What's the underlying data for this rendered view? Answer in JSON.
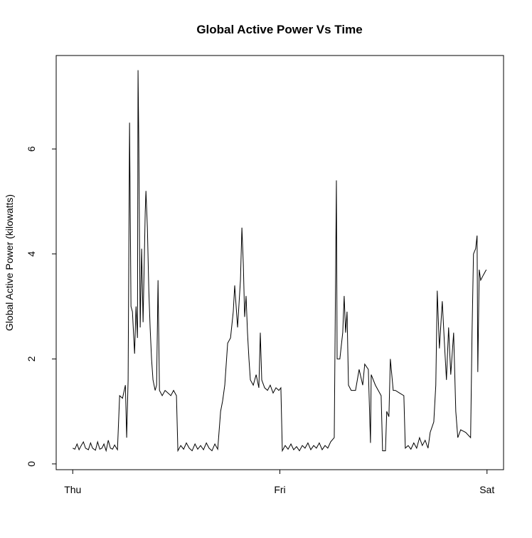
{
  "chart_data": {
    "type": "line",
    "title": "Global Active Power Vs Time",
    "y_label": "Global Active Power (kilowatts)",
    "color": "#000000",
    "x": [
      0,
      15,
      30,
      44,
      59,
      74,
      89,
      109,
      124,
      138,
      158,
      173,
      188,
      203,
      217,
      232,
      247,
      262,
      277,
      291,
      311,
      326,
      346,
      366,
      375,
      385,
      395,
      405,
      415,
      430,
      440,
      450,
      454,
      459,
      469,
      479,
      489,
      504,
      509,
      519,
      529,
      538,
      548,
      558,
      573,
      583,
      593,
      603,
      622,
      642,
      662,
      682,
      701,
      721,
      731,
      751,
      771,
      790,
      810,
      830,
      850,
      869,
      889,
      909,
      929,
      948,
      968,
      988,
      1008,
      1028,
      1042,
      1057,
      1077,
      1097,
      1116,
      1126,
      1146,
      1166,
      1176,
      1186,
      1195,
      1205,
      1215,
      1225,
      1235,
      1255,
      1275,
      1294,
      1304,
      1314,
      1334,
      1354,
      1373,
      1393,
      1413,
      1433,
      1447,
      1457,
      1477,
      1497,
      1517,
      1536,
      1556,
      1576,
      1596,
      1615,
      1635,
      1655,
      1675,
      1694,
      1714,
      1734,
      1754,
      1773,
      1793,
      1818,
      1833,
      1838,
      1857,
      1877,
      1887,
      1897,
      1907,
      1917,
      1936,
      1966,
      1991,
      2016,
      2030,
      2055,
      2070,
      2075,
      2104,
      2124,
      2144,
      2154,
      2174,
      2183,
      2198,
      2208,
      2228,
      2243,
      2272,
      2302,
      2312,
      2332,
      2351,
      2371,
      2391,
      2411,
      2430,
      2450,
      2470,
      2485,
      2510,
      2524,
      2534,
      2549,
      2569,
      2584,
      2598,
      2613,
      2628,
      2648,
      2663,
      2677,
      2697,
      2732,
      2766,
      2776,
      2786,
      2801,
      2811,
      2816,
      2826,
      2836,
      2855,
      2875
    ],
    "values": [
      0.3,
      0.28,
      0.38,
      0.27,
      0.35,
      0.42,
      0.3,
      0.27,
      0.4,
      0.3,
      0.26,
      0.42,
      0.28,
      0.3,
      0.38,
      0.25,
      0.45,
      0.3,
      0.28,
      0.36,
      0.27,
      1.3,
      1.25,
      1.5,
      0.5,
      1.6,
      6.5,
      3.0,
      2.9,
      2.1,
      3.0,
      2.4,
      7.5,
      6.2,
      2.6,
      4.1,
      2.7,
      4.8,
      5.2,
      4.5,
      3.3,
      2.6,
      2.0,
      1.6,
      1.4,
      1.5,
      3.5,
      1.4,
      1.3,
      1.4,
      1.35,
      1.3,
      1.4,
      1.3,
      0.25,
      0.35,
      0.28,
      0.4,
      0.3,
      0.25,
      0.38,
      0.28,
      0.35,
      0.27,
      0.4,
      0.3,
      0.25,
      0.38,
      0.28,
      1.0,
      1.2,
      1.5,
      2.3,
      2.4,
      2.9,
      3.4,
      2.6,
      3.5,
      4.5,
      3.8,
      2.8,
      3.2,
      2.5,
      2.0,
      1.6,
      1.5,
      1.7,
      1.45,
      2.5,
      1.6,
      1.45,
      1.4,
      1.5,
      1.35,
      1.45,
      1.4,
      1.45,
      0.25,
      0.35,
      0.28,
      0.38,
      0.27,
      0.33,
      0.25,
      0.35,
      0.3,
      0.4,
      0.27,
      0.35,
      0.3,
      0.4,
      0.27,
      0.35,
      0.3,
      0.42,
      0.5,
      5.4,
      2.0,
      2.0,
      2.5,
      3.2,
      2.5,
      2.9,
      1.5,
      1.4,
      1.4,
      1.8,
      1.5,
      1.9,
      1.8,
      0.4,
      1.7,
      1.5,
      1.4,
      1.3,
      0.25,
      0.25,
      1.0,
      0.9,
      2.0,
      1.4,
      1.4,
      1.35,
      1.3,
      0.3,
      0.35,
      0.28,
      0.4,
      0.3,
      0.5,
      0.35,
      0.45,
      0.3,
      0.6,
      0.8,
      1.5,
      3.3,
      2.2,
      3.1,
      2.3,
      1.6,
      2.6,
      1.7,
      2.5,
      1.0,
      0.5,
      0.65,
      0.6,
      0.5,
      2.5,
      4.0,
      4.1,
      4.35,
      1.75,
      3.7,
      3.5,
      3.6,
      3.7
    ],
    "xlim": [
      -115,
      2995
    ],
    "xticks": [
      {
        "value": 0,
        "label": "Thu"
      },
      {
        "value": 1440,
        "label": "Fri"
      },
      {
        "value": 2880,
        "label": "Sat"
      }
    ],
    "ylim": [
      -0.11,
      7.78
    ],
    "yticks": [
      0,
      2,
      4,
      6
    ]
  }
}
